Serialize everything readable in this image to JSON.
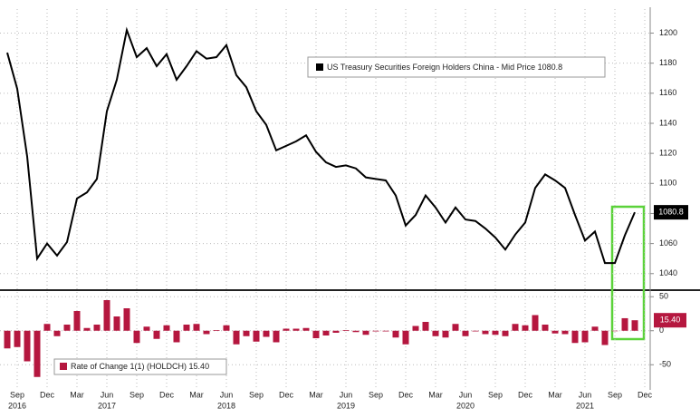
{
  "chart_data": [
    {
      "type": "line",
      "series": [
        {
          "name": "US Treasury Securities Foreign Holders China - Mid Price 1080.8",
          "color": "#000000",
          "values": [
            1187,
            1163,
            1118,
            1050,
            1060,
            1052,
            1061,
            1090,
            1094,
            1103,
            1148,
            1169,
            1202,
            1184,
            1190,
            1178,
            1186,
            1169,
            1178,
            1188,
            1183,
            1184,
            1192,
            1172,
            1164,
            1148,
            1139,
            1122,
            1125,
            1128,
            1132,
            1121,
            1114,
            1111,
            1112,
            1110,
            1104,
            1103,
            1102,
            1092,
            1072,
            1079,
            1092,
            1084,
            1074,
            1084,
            1076,
            1075,
            1070,
            1064,
            1056,
            1066,
            1074,
            1097,
            1106,
            1102,
            1097,
            1079,
            1062,
            1068,
            1047,
            1047,
            1065.4,
            1080.8,
            null
          ]
        }
      ],
      "ylim": [
        1029,
        1216
      ],
      "yticks": [
        1040,
        1060,
        1080,
        1100,
        1120,
        1140,
        1160,
        1180,
        1200
      ],
      "grid": true
    },
    {
      "type": "bar",
      "categories": [
        null,
        "Sep",
        null,
        null,
        "Dec",
        null,
        null,
        "Mar",
        null,
        null,
        "Jun",
        null,
        null,
        "Sep",
        null,
        null,
        "Dec",
        null,
        null,
        "Mar",
        null,
        null,
        "Jun",
        null,
        null,
        "Sep",
        null,
        null,
        "Dec",
        null,
        null,
        "Mar",
        null,
        null,
        "Jun",
        null,
        null,
        "Sep",
        null,
        null,
        "Dec",
        null,
        null,
        "Mar",
        null,
        null,
        "Jun",
        null,
        null,
        "Sep",
        null,
        null,
        "Dec",
        null,
        null,
        "Mar",
        null,
        null,
        "Jun",
        null,
        null,
        "Sep",
        null,
        null,
        "Dec"
      ],
      "category_years": [
        null,
        "2016",
        null,
        null,
        null,
        null,
        null,
        null,
        null,
        null,
        "2017",
        null,
        null,
        null,
        null,
        null,
        null,
        null,
        null,
        null,
        null,
        null,
        "2018",
        null,
        null,
        null,
        null,
        null,
        null,
        null,
        null,
        null,
        null,
        null,
        "2019",
        null,
        null,
        null,
        null,
        null,
        null,
        null,
        null,
        null,
        null,
        null,
        "2020",
        null,
        null,
        null,
        null,
        null,
        null,
        null,
        null,
        null,
        null,
        null,
        "2021",
        null,
        null,
        null,
        null,
        null,
        null
      ],
      "series": [
        {
          "name": "Rate of Change 1(1) (HOLDCH) 15.40",
          "color": "#b5173f",
          "values": [
            -26,
            -24,
            -45,
            -68,
            10,
            -8,
            9,
            29,
            4,
            9,
            45,
            21,
            33,
            -18,
            6,
            -12,
            8,
            -17,
            9,
            10,
            -5,
            1,
            8,
            -20,
            -8,
            -16,
            -9,
            -17,
            3,
            3,
            4,
            -11,
            -7,
            -3,
            1,
            -2,
            -6,
            -1,
            -1,
            -10,
            -20,
            7,
            13,
            -8,
            -10,
            10,
            -8,
            -1,
            -5,
            -6,
            -8,
            10,
            8,
            23,
            9,
            -4,
            -5,
            -18,
            -17,
            6,
            -21,
            0,
            18.4,
            15.4,
            null
          ],
          "value_labels": [
            null,
            null,
            null,
            null,
            null,
            null,
            null,
            null,
            null,
            null,
            null,
            null,
            null,
            null,
            null,
            null,
            null,
            null,
            null,
            null,
            null,
            null,
            null,
            null,
            null,
            null,
            null,
            null,
            null,
            null,
            null,
            null,
            null,
            null,
            null,
            null,
            null,
            null,
            null,
            null,
            null,
            null,
            null,
            null,
            null,
            null,
            null,
            null,
            null,
            null,
            null,
            null,
            null,
            null,
            null,
            null,
            null,
            null,
            null,
            null,
            null,
            null,
            null,
            "15.40",
            null
          ]
        }
      ],
      "ylim": [
        -87,
        57
      ],
      "yticks": [
        -50,
        0,
        50
      ],
      "grid": true
    }
  ]
}
